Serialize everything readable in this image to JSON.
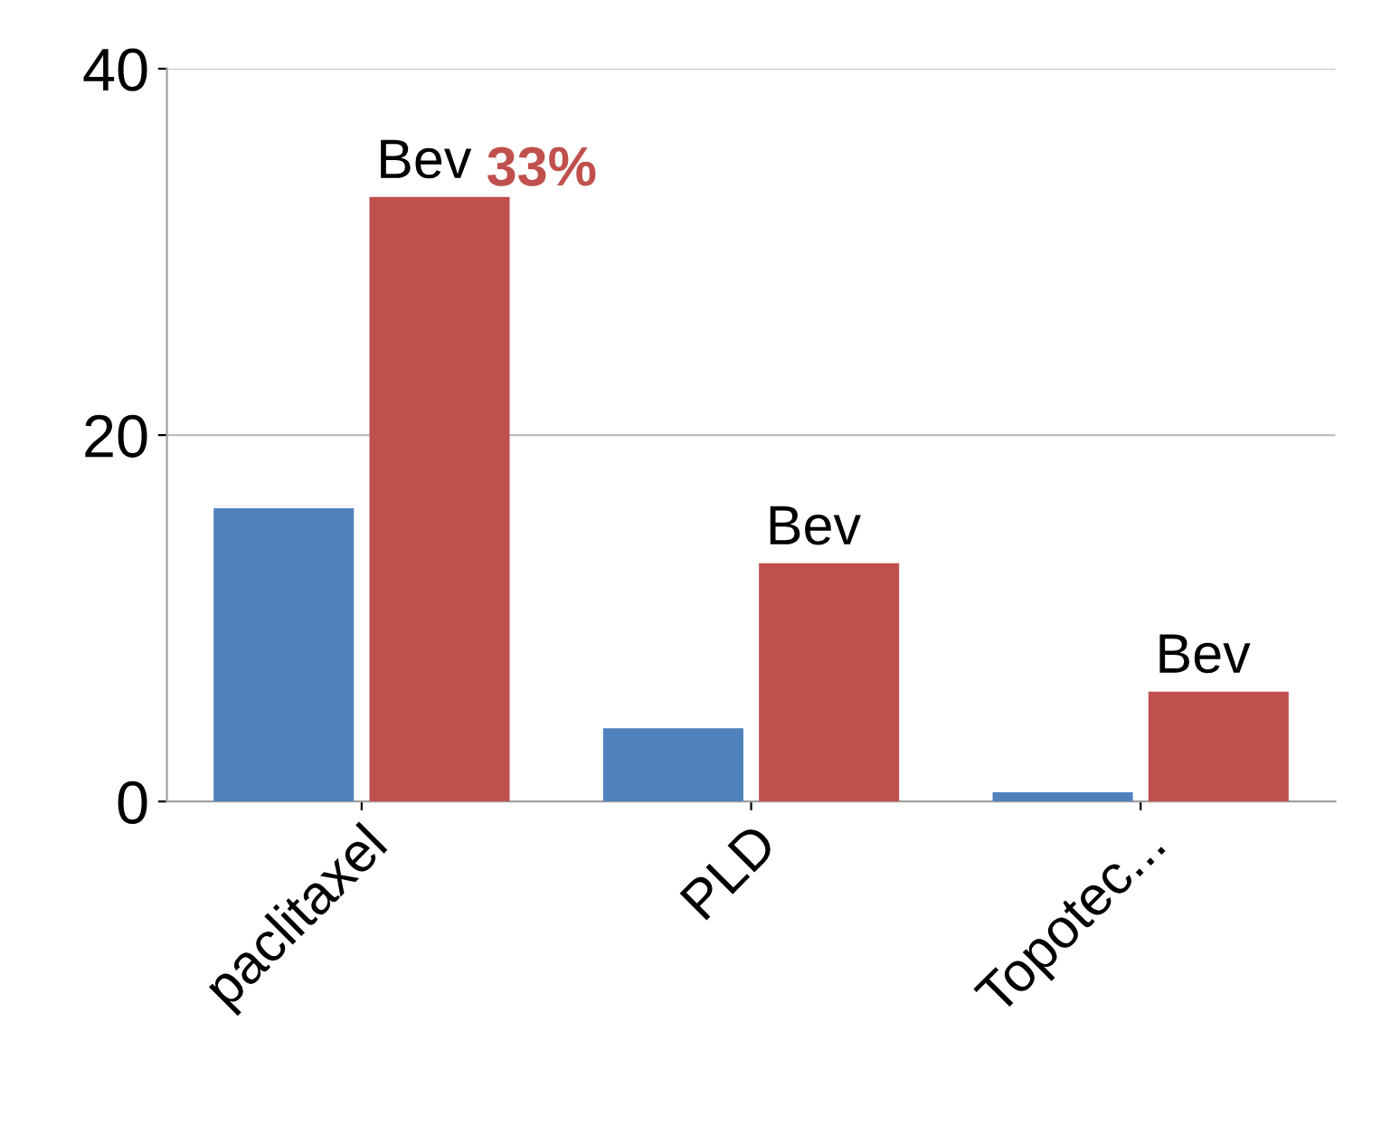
{
  "chart_data": {
    "type": "bar",
    "categories": [
      "paclitaxel",
      "PLD",
      "Topotec..."
    ],
    "series": [
      {
        "color": "#4f81bd",
        "values": [
          16,
          4,
          0.5
        ]
      },
      {
        "color": "#c0504d",
        "values": [
          33,
          13,
          6
        ],
        "value_labels": [
          "33%",
          null,
          null
        ]
      }
    ],
    "annotations": [
      {
        "text": "Bev",
        "x": "paclitaxel",
        "y": 33
      },
      {
        "text": "Bev",
        "x": "PLD",
        "y": 13
      },
      {
        "text": "Bev",
        "x": "Topotec...",
        "y": 6
      }
    ],
    "ylim": [
      0,
      40
    ],
    "yticks": [
      0,
      20,
      40
    ],
    "grid": "y"
  }
}
